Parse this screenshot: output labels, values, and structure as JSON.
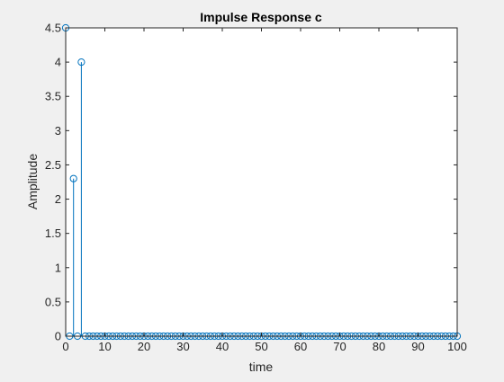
{
  "chart_data": {
    "type": "stem",
    "title": "Impulse Response c",
    "xlabel": "time",
    "ylabel": "Amplitude",
    "xlim": [
      0,
      100
    ],
    "ylim": [
      0,
      4.5
    ],
    "xticks": [
      0,
      10,
      20,
      30,
      40,
      50,
      60,
      70,
      80,
      90,
      100
    ],
    "yticks": [
      0,
      0.5,
      1,
      1.5,
      2,
      2.5,
      3,
      3.5,
      4,
      4.5
    ],
    "x_tick_labels": [
      "0",
      "10",
      "20",
      "30",
      "40",
      "50",
      "60",
      "70",
      "80",
      "90",
      "100"
    ],
    "y_tick_labels": [
      "0",
      "0.5",
      "1",
      "1.5",
      "2",
      "2.5",
      "3",
      "3.5",
      "4",
      "4.5"
    ],
    "grid": false,
    "series": [
      {
        "x_start": 0,
        "x_end": 100,
        "x_step": 1,
        "nonzero_values": [
          {
            "x": 0,
            "y": 4.5
          },
          {
            "x": 2,
            "y": 2.3
          },
          {
            "x": 4,
            "y": 4.0
          }
        ],
        "default_value": 0
      }
    ],
    "colors": {
      "stem": "#0072bd",
      "axes": "#262626",
      "plot_background": "#ffffff",
      "figure_background": "#f0f0f0"
    }
  }
}
